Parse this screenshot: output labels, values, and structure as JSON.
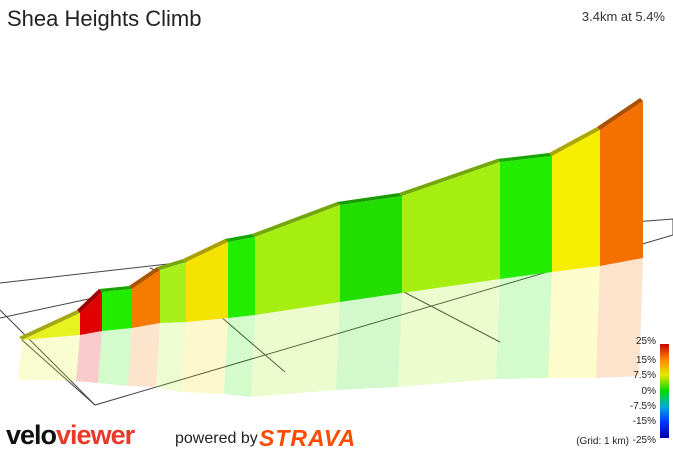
{
  "header": {
    "title": "Shea Heights Climb",
    "stats": "3.4km at 5.4%"
  },
  "chart_data": {
    "type": "area",
    "segments_grade_color": [
      "#e8f21e",
      "#e00000",
      "#22ec00",
      "#f47a00",
      "#a8ee1a",
      "#f4e200",
      "#22ec00",
      "#a6ee10",
      "#22dd00",
      "#a6ee10",
      "#22ec00",
      "#f6ee00",
      "#f47000"
    ],
    "legend": {
      "ticks": [
        "25%",
        "15%",
        "7.5%",
        "0%",
        "-7.5%",
        "-15%",
        "-25%"
      ],
      "colors": [
        "#cc0000",
        "#ff8800",
        "#e6e600",
        "#00dd00",
        "#00aadd",
        "#0033ff",
        "#0000aa"
      ]
    },
    "grid_note": "(Grid: 1 km)"
  },
  "branding": {
    "logo_part1": "velo",
    "logo_part2": "viewer",
    "powered_by": "powered by",
    "strava": "STRAVA"
  }
}
